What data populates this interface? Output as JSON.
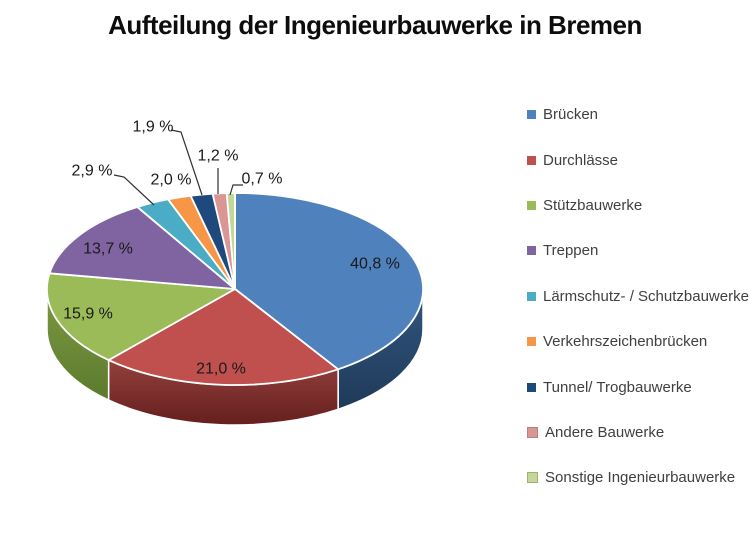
{
  "title": "Aufteilung der Ingenieurbauwerke in Bremen",
  "chart_data": {
    "type": "pie",
    "is_3d": true,
    "title": "Aufteilung der Ingenieurbauwerke in Bremen",
    "start_angle_deg": 0,
    "direction": "clockwise",
    "legend_position": "right",
    "label_style": "percent labels; values below 3 % placed outside with leader lines",
    "categories": [
      "Brücken",
      "Durchlässe",
      "Stützbauwerke",
      "Treppen",
      "Lärmschutz- / Schutzbauwerke",
      "Verkehrszeichenbrücken",
      "Tunnel/ Trogbauwerke",
      "Andere Bauwerke",
      "Sonstige Ingenieurbauwerke"
    ],
    "values": [
      40.8,
      21.0,
      15.9,
      13.7,
      2.9,
      2.0,
      1.9,
      1.2,
      0.7
    ],
    "value_labels": [
      "40,8 %",
      "21,0 %",
      "15,9 %",
      "13,7 %",
      "2,9 %",
      "2,0 %",
      "1,9 %",
      "1,2 %",
      "0,7 %"
    ],
    "colors": [
      "#4F81BD",
      "#C0504D",
      "#9BBB59",
      "#8064A2",
      "#4BACC6",
      "#F79646",
      "#1F497D",
      "#D99694",
      "#C3D69B"
    ],
    "side_colors": {
      "0": [
        "#31567F",
        "#1F3A59"
      ],
      "1": [
        "#93403C",
        "#651F1E"
      ],
      "2": [
        "#7C9A40",
        "#5C7A2E"
      ]
    },
    "label_color": "#1a1a1a",
    "leader_line_color": "#303030",
    "legend_text_color": "#404040"
  }
}
